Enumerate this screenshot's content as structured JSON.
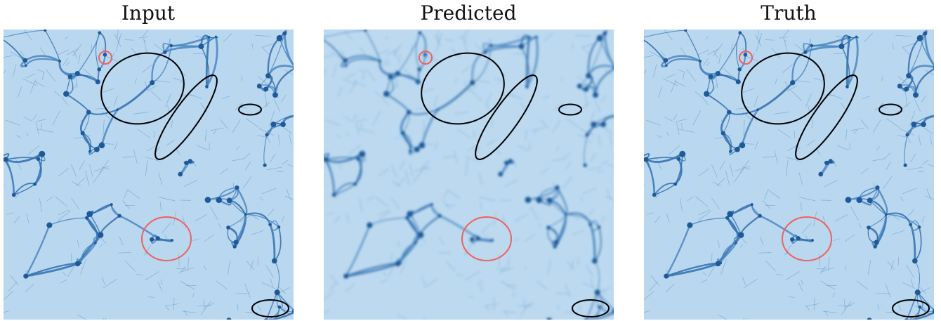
{
  "panels": [
    {
      "title": "Input"
    },
    {
      "title": "Predicted"
    },
    {
      "title": "Truth"
    }
  ]
}
